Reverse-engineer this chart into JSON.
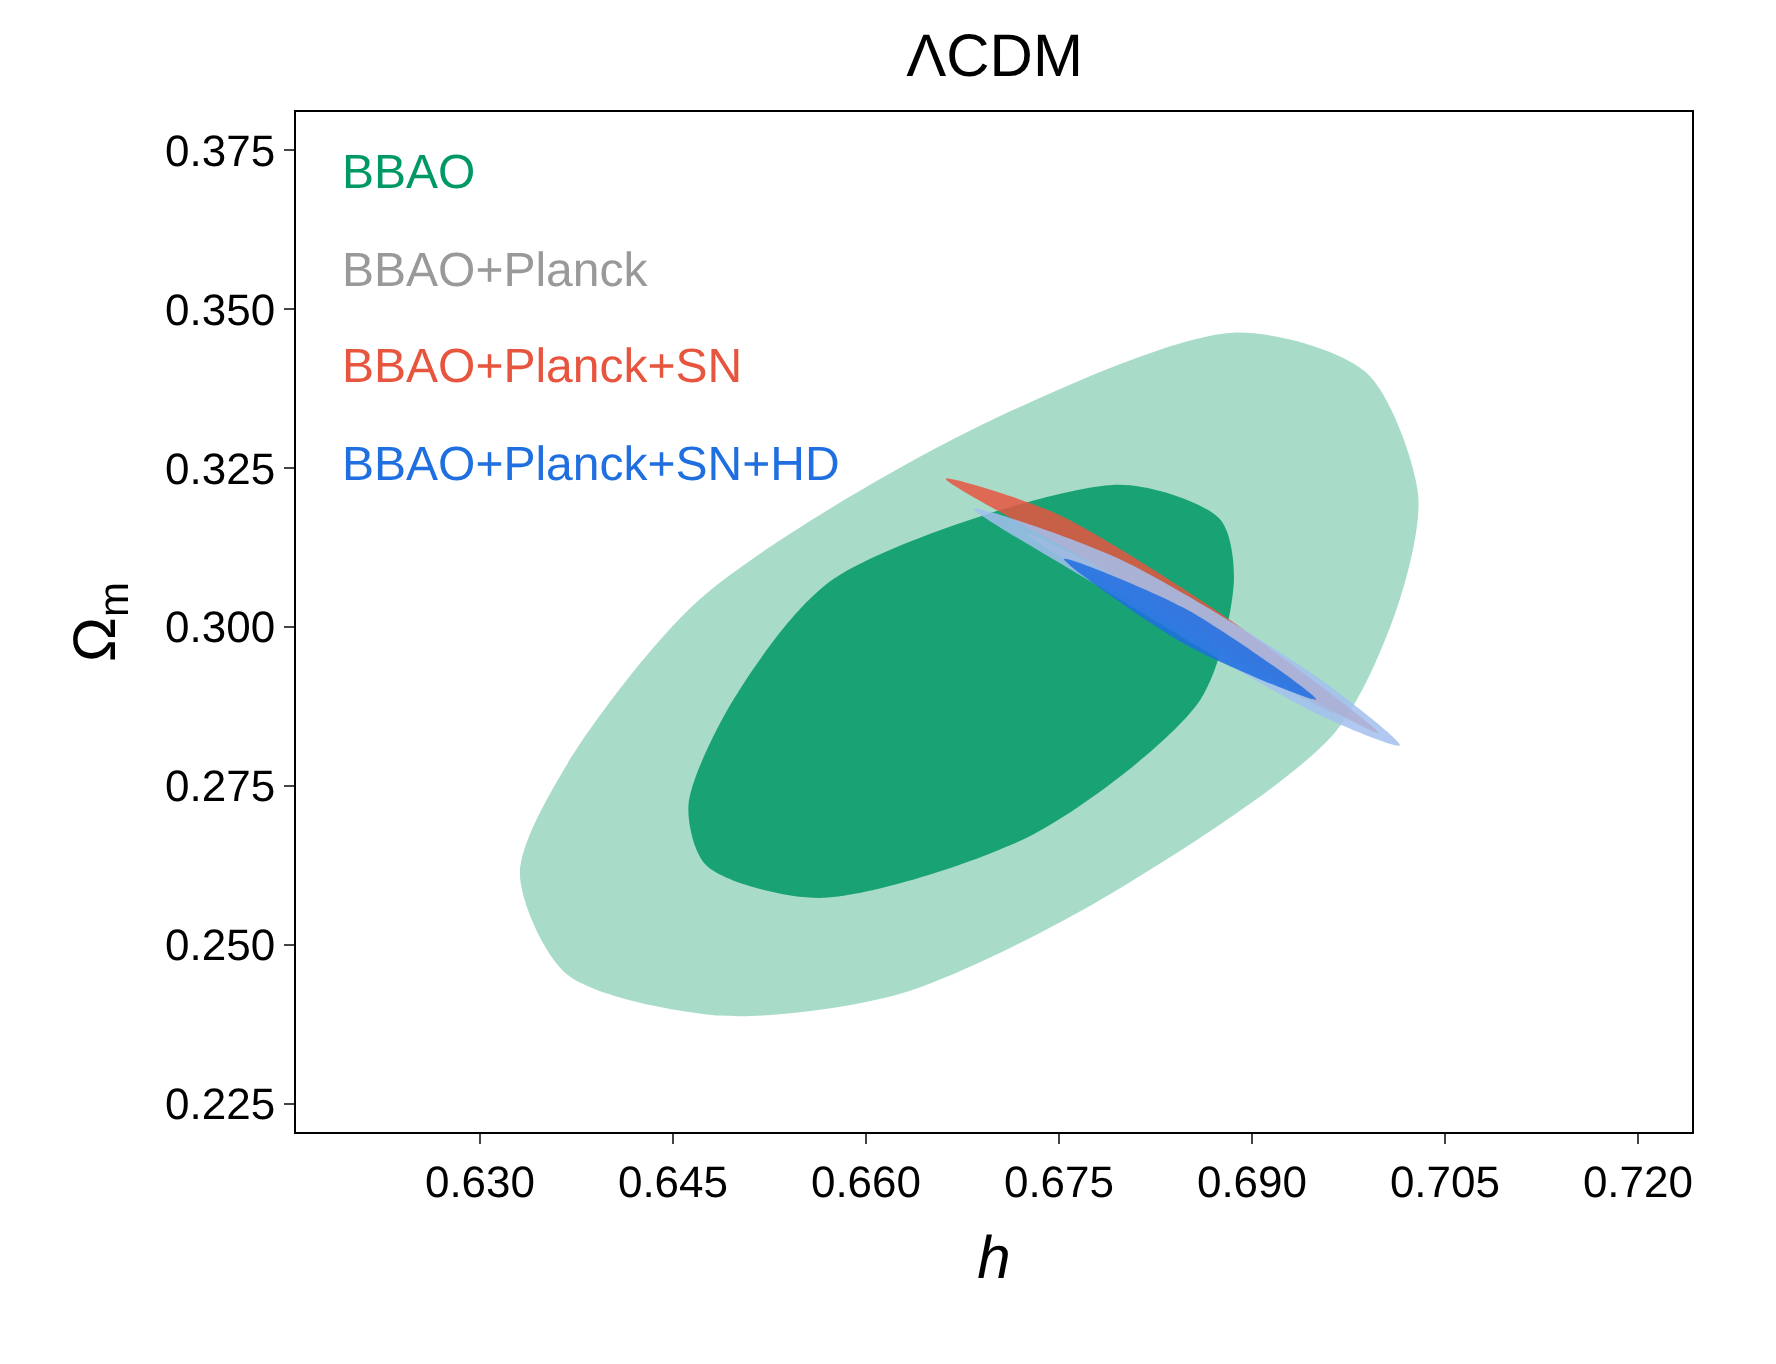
{
  "chart_data": {
    "type": "area",
    "title": "ΛCDM",
    "xlabel": "h",
    "ylabel": "Ω$_{m}$",
    "xlim": [
      0.6157,
      0.7242
    ],
    "ylim": [
      0.2206,
      0.381
    ],
    "xticks": [
      {
        "value": 0.63,
        "label": "0.630"
      },
      {
        "value": 0.645,
        "label": "0.645"
      },
      {
        "value": 0.66,
        "label": "0.660"
      },
      {
        "value": 0.675,
        "label": "0.675"
      },
      {
        "value": 0.69,
        "label": "0.690"
      },
      {
        "value": 0.705,
        "label": "0.705"
      },
      {
        "value": 0.72,
        "label": "0.720"
      }
    ],
    "yticks": [
      {
        "value": 0.225,
        "label": "0.225"
      },
      {
        "value": 0.25,
        "label": "0.250"
      },
      {
        "value": 0.275,
        "label": "0.275"
      },
      {
        "value": 0.3,
        "label": "0.300"
      },
      {
        "value": 0.325,
        "label": "0.325"
      },
      {
        "value": 0.35,
        "label": "0.350"
      },
      {
        "value": 0.375,
        "label": "0.375"
      }
    ],
    "legend": "top left",
    "series": [
      {
        "color": "#99d6c0",
        "x": [
          0.6331,
          0.6367,
          0.6471,
          0.6678,
          0.6886,
          0.6989,
          0.7029,
          0.7015,
          0.6964,
          0.6782,
          0.6626,
          0.6487,
          0.6367
        ],
        "values": [
          0.2612,
          0.2782,
          0.3044,
          0.3306,
          0.3463,
          0.34,
          0.3211,
          0.3044,
          0.2833,
          0.2571,
          0.2423,
          0.2389,
          0.2455
        ]
      },
      {
        "name": "BBAO",
        "color": "#009966",
        "x": [
          0.6462,
          0.6497,
          0.6575,
          0.6797,
          0.6875,
          0.6886,
          0.686,
          0.6731,
          0.6564,
          0.6476
        ],
        "values": [
          0.2719,
          0.2886,
          0.3076,
          0.3224,
          0.317,
          0.3076,
          0.2886,
          0.2675,
          0.2574,
          0.2625
        ]
      },
      {
        "name": "BBAO+Planck",
        "color": "#999999",
        "x": [
          0.6724,
          0.686,
          0.6964,
          0.6844
        ],
        "values": [
          0.3148,
          0.3013,
          0.2864,
          0.2997
        ]
      },
      {
        "name": "BBAO+Planck+SN",
        "color": "#e8553f",
        "x": [
          0.6662,
          0.6746,
          0.6875,
          0.6999,
          0.6926,
          0.6797
        ],
        "values": [
          0.3233,
          0.318,
          0.3022,
          0.2833,
          0.2909,
          0.3076
        ]
      },
      {
        "color": "#a3c0ee",
        "x": [
          0.6684,
          0.6797,
          0.6953,
          0.7015,
          0.6953,
          0.6771
        ],
        "values": [
          0.3186,
          0.3107,
          0.2918,
          0.2814,
          0.2861,
          0.3076
        ]
      },
      {
        "name": "BBAO+Planck+SN+HD",
        "color": "#1f6fe0",
        "x": [
          0.6754,
          0.6849,
          0.695,
          0.6849
        ],
        "values": [
          0.3107,
          0.3028,
          0.2886,
          0.2972
        ]
      }
    ]
  }
}
